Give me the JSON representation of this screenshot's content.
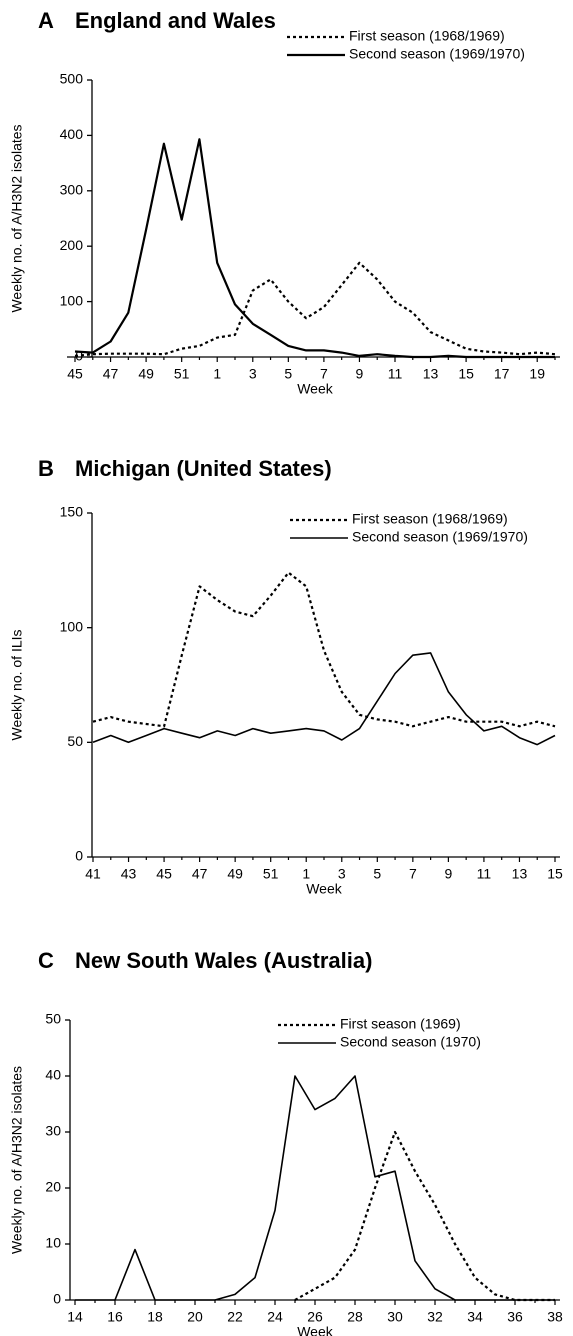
{
  "chart_data": [
    {
      "type": "line",
      "panel": "A",
      "title": "England and Wales",
      "ylabel": "Weekly no. of A/H3N2 isolates",
      "xlabel": "Week",
      "categories": [
        45,
        null,
        47,
        null,
        49,
        null,
        51,
        null,
        1,
        null,
        3,
        null,
        5,
        null,
        7,
        null,
        9,
        null,
        11,
        null,
        13,
        null,
        15,
        null,
        17,
        null,
        19,
        null
      ],
      "ylim": [
        0,
        500
      ],
      "yticks": [
        0,
        100,
        200,
        300,
        400,
        500
      ],
      "series": [
        {
          "name": "First season (1968/1969)",
          "color": "#000000",
          "line_style": "dotted",
          "values": [
            2,
            5,
            6,
            6,
            6,
            5,
            15,
            20,
            35,
            40,
            120,
            140,
            100,
            70,
            90,
            130,
            170,
            140,
            100,
            80,
            45,
            30,
            15,
            10,
            8,
            5,
            8,
            5
          ]
        },
        {
          "name": "Second season (1969/1970)",
          "color": "#000000",
          "line_style": "solid",
          "values": [
            10,
            8,
            28,
            80,
            230,
            385,
            248,
            393,
            170,
            95,
            60,
            40,
            20,
            12,
            12,
            8,
            2,
            5,
            2,
            0,
            0,
            2,
            0,
            0,
            0,
            0,
            0,
            0
          ]
        }
      ]
    },
    {
      "type": "line",
      "panel": "B",
      "title": "Michigan (United States)",
      "ylabel": "Weekly no. of ILIs",
      "xlabel": "Week",
      "categories": [
        41,
        null,
        43,
        null,
        45,
        null,
        47,
        null,
        49,
        null,
        51,
        null,
        1,
        null,
        3,
        null,
        5,
        null,
        7,
        null,
        9,
        null,
        11,
        null,
        13,
        null,
        15
      ],
      "ylim": [
        0,
        150
      ],
      "yticks": [
        0,
        50,
        100,
        150
      ],
      "series": [
        {
          "name": "First season (1968/1969)",
          "color": "#000000",
          "line_style": "dotted",
          "values": [
            59,
            61,
            59,
            58,
            57,
            88,
            118,
            112,
            107,
            105,
            114,
            124,
            118,
            90,
            72,
            62,
            60,
            59,
            57,
            59,
            61,
            59,
            59,
            59,
            57,
            59,
            57
          ]
        },
        {
          "name": "Second season (1969/1970)",
          "color": "#000000",
          "line_style": "solid",
          "values": [
            50,
            53,
            50,
            53,
            56,
            54,
            52,
            55,
            53,
            56,
            54,
            55,
            56,
            55,
            51,
            56,
            68,
            80,
            88,
            89,
            72,
            62,
            55,
            57,
            52,
            49,
            53
          ]
        }
      ]
    },
    {
      "type": "line",
      "panel": "C",
      "title": "New South Wales (Australia)",
      "ylabel": "Weekly no. of A/H3N2 isolates",
      "xlabel": "Week",
      "categories": [
        14,
        null,
        16,
        null,
        18,
        null,
        20,
        null,
        22,
        null,
        24,
        null,
        26,
        null,
        28,
        null,
        30,
        null,
        32,
        null,
        34,
        null,
        36,
        null,
        38
      ],
      "ylim": [
        0,
        50
      ],
      "yticks": [
        0,
        10,
        20,
        30,
        40,
        50
      ],
      "series": [
        {
          "name": "First season (1969)",
          "color": "#000000",
          "line_style": "dotted",
          "values": [
            null,
            null,
            null,
            null,
            null,
            null,
            null,
            null,
            null,
            null,
            null,
            0,
            2,
            4,
            9,
            20,
            30,
            23,
            17,
            10,
            4,
            1,
            0,
            0,
            0
          ]
        },
        {
          "name": "Second season (1970)",
          "color": "#000000",
          "line_style": "solid",
          "values": [
            0,
            0,
            0,
            9,
            0,
            0,
            0,
            0,
            1,
            4,
            16,
            40,
            34,
            36,
            40,
            22,
            23,
            7,
            2,
            0,
            0,
            0,
            0,
            0,
            0
          ]
        }
      ]
    }
  ]
}
